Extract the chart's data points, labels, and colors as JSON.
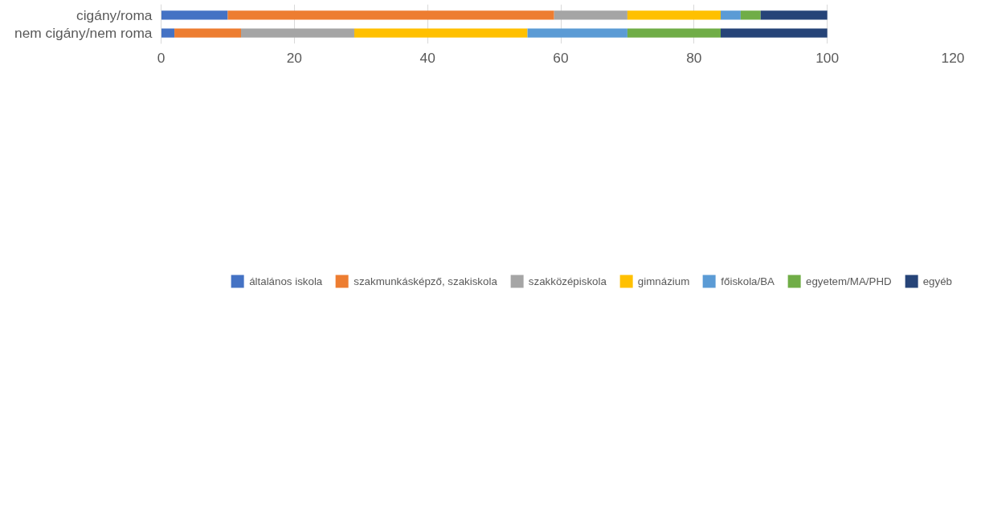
{
  "chart_data": {
    "type": "bar",
    "orientation": "horizontal",
    "stacked": true,
    "categories": [
      "cigány/roma",
      "nem cigány/nem roma"
    ],
    "series": [
      {
        "name": "általános iskola",
        "color": "#4472c4",
        "values": [
          10,
          2
        ]
      },
      {
        "name": "szakmunkásképző, szakiskola",
        "color": "#ed7d31",
        "values": [
          49,
          10
        ]
      },
      {
        "name": "szakközépiskola",
        "color": "#a5a5a5",
        "values": [
          11,
          17
        ]
      },
      {
        "name": "gimnázium",
        "color": "#ffc000",
        "values": [
          14,
          26
        ]
      },
      {
        "name": "főiskola/BA",
        "color": "#5b9bd5",
        "values": [
          3,
          15
        ]
      },
      {
        "name": "egyetem/MA/PHD",
        "color": "#70ad47",
        "values": [
          3,
          14
        ]
      },
      {
        "name": "egyéb",
        "color": "#264478",
        "values": [
          10,
          16
        ]
      }
    ],
    "xlim": [
      0,
      120
    ],
    "xticks": [
      0,
      20,
      40,
      60,
      80,
      100,
      120
    ],
    "grid": "x",
    "legend": "bottom"
  }
}
